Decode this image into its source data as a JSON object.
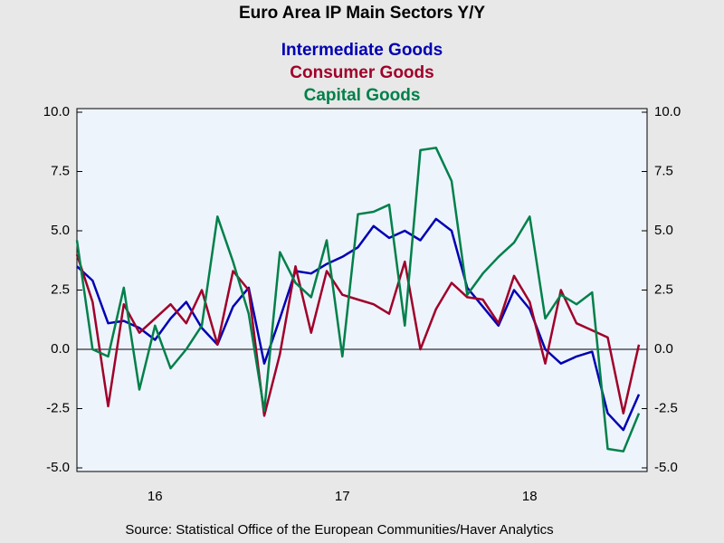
{
  "chart_data": {
    "type": "line",
    "title": "Euro Area IP Main Sectors Y/Y",
    "source": "Source:  Statistical Office of the European Communities/Haver Analytics",
    "categories": [
      null,
      null,
      null,
      null,
      null,
      "16",
      null,
      null,
      null,
      null,
      null,
      null,
      null,
      null,
      null,
      null,
      null,
      "17",
      null,
      null,
      null,
      null,
      null,
      null,
      null,
      null,
      null,
      null,
      null,
      "18",
      null,
      null,
      null,
      null,
      null,
      null,
      null
    ],
    "series": [
      {
        "name": "Intermediate Goods",
        "color": "#0000b4",
        "values": [
          3.5,
          2.9,
          1.1,
          1.2,
          0.9,
          0.4,
          1.3,
          2.0,
          0.9,
          0.2,
          1.8,
          2.6,
          -0.6,
          1.3,
          3.3,
          3.2,
          3.6,
          3.9,
          4.3,
          5.2,
          4.7,
          5.0,
          4.6,
          5.5,
          5.0,
          2.6,
          1.8,
          1.0,
          2.5,
          1.7,
          0.0,
          -0.6,
          -0.3,
          -0.1,
          -2.7,
          -3.4,
          -1.9
        ]
      },
      {
        "name": "Consumer Goods",
        "color": "#a0002a",
        "values": [
          4.0,
          2.0,
          -2.4,
          1.9,
          0.7,
          1.3,
          1.9,
          1.1,
          2.5,
          0.2,
          3.3,
          2.5,
          -2.8,
          -0.2,
          3.5,
          0.7,
          3.3,
          2.3,
          2.1,
          1.9,
          1.5,
          3.7,
          0.0,
          1.7,
          2.8,
          2.2,
          2.1,
          1.1,
          3.1,
          2.0,
          -0.6,
          2.5,
          1.1,
          0.8,
          0.5,
          -2.7,
          0.2
        ]
      },
      {
        "name": "Capital Goods",
        "color": "#00804a",
        "values": [
          4.6,
          0.0,
          -0.3,
          2.6,
          -1.7,
          1.0,
          -0.8,
          0.0,
          1.0,
          5.6,
          3.7,
          1.5,
          -2.6,
          4.1,
          2.8,
          2.2,
          4.6,
          -0.3,
          5.7,
          5.8,
          6.1,
          1.0,
          8.4,
          8.5,
          7.1,
          2.3,
          3.2,
          3.9,
          4.5,
          5.6,
          1.3,
          2.3,
          1.9,
          2.4,
          -4.2,
          -4.3,
          -2.7
        ]
      }
    ],
    "ylim": [
      -5,
      10
    ],
    "yticks": [
      {
        "value": -5,
        "label": "-5.0"
      },
      {
        "value": -2.5,
        "label": "-2.5"
      },
      {
        "value": 0,
        "label": "0.0"
      },
      {
        "value": 2.5,
        "label": "2.5"
      },
      {
        "value": 5,
        "label": "5.0"
      },
      {
        "value": 7.5,
        "label": "7.5"
      },
      {
        "value": 10,
        "label": "10.0"
      }
    ],
    "y2lim": [
      -5,
      10
    ],
    "y2ticks": [
      {
        "value": -5,
        "label": "-5.0"
      },
      {
        "value": -2.5,
        "label": "-2.5"
      },
      {
        "value": 0,
        "label": "0.0"
      },
      {
        "value": 2.5,
        "label": "2.5"
      },
      {
        "value": 5,
        "label": "5.0"
      },
      {
        "value": 7.5,
        "label": "7.5"
      },
      {
        "value": 10,
        "label": "10.0"
      }
    ]
  }
}
